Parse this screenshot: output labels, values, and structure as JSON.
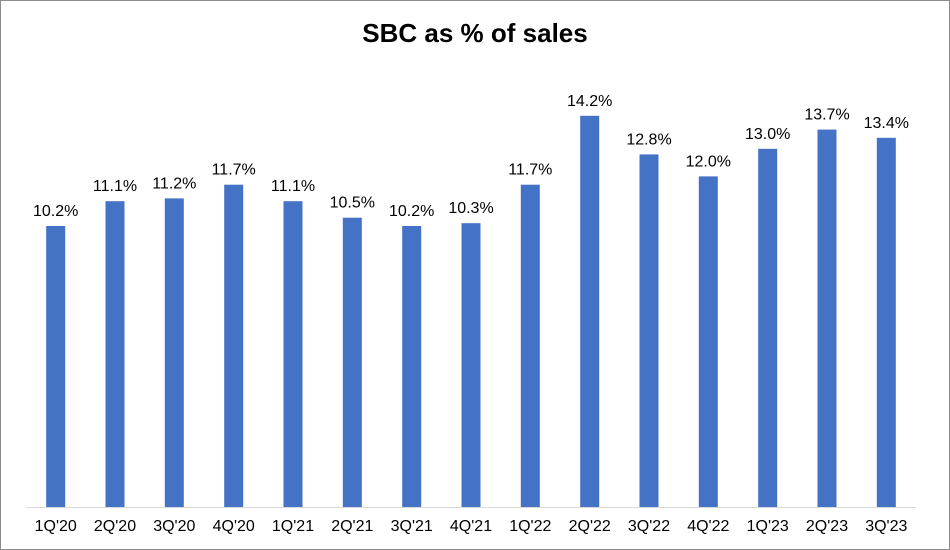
{
  "chart_data": {
    "type": "bar",
    "title": "SBC as % of sales",
    "xlabel": "",
    "ylabel": "",
    "ylim": [
      0,
      16
    ],
    "grid": false,
    "legend": "none",
    "bar_color": "#4472C4",
    "categories": [
      "1Q'20",
      "2Q'20",
      "3Q'20",
      "4Q'20",
      "1Q'21",
      "2Q'21",
      "3Q'21",
      "4Q'21",
      "1Q'22",
      "2Q'22",
      "3Q'22",
      "4Q'22",
      "1Q'23",
      "2Q'23",
      "3Q'23"
    ],
    "values": [
      10.2,
      11.1,
      11.2,
      11.7,
      11.1,
      10.5,
      10.2,
      10.3,
      11.7,
      14.2,
      12.8,
      12.0,
      13.0,
      13.7,
      13.4
    ],
    "data_labels": [
      "10.2%",
      "11.1%",
      "11.2%",
      "11.7%",
      "11.1%",
      "10.5%",
      "10.2%",
      "10.3%",
      "11.7%",
      "14.2%",
      "12.8%",
      "12.0%",
      "13.0%",
      "13.7%",
      "13.4%"
    ]
  }
}
